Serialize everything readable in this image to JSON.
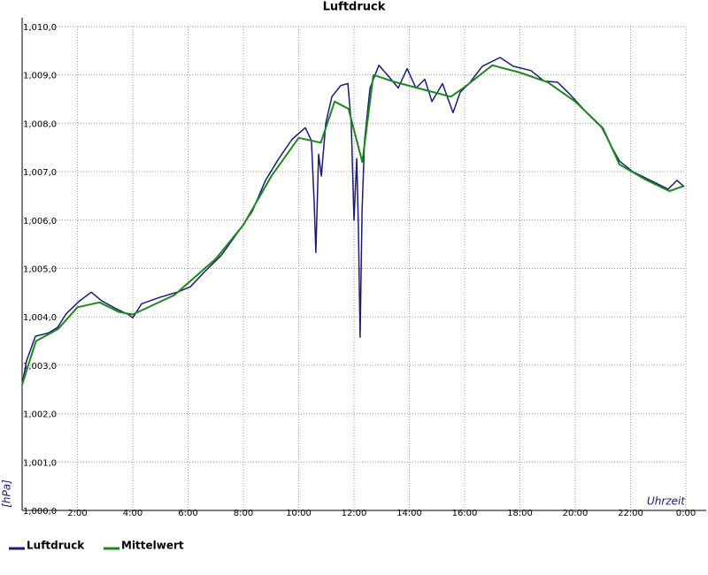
{
  "chart_data": {
    "type": "line",
    "title": "Luftdruck",
    "y_label": "[hPa]",
    "x_label": "Uhrzeit",
    "xlim": [
      0,
      24
    ],
    "xticks": [
      {
        "value": 2,
        "label": "2:00"
      },
      {
        "value": 4,
        "label": "4:00"
      },
      {
        "value": 6,
        "label": "6:00"
      },
      {
        "value": 8,
        "label": "8:00"
      },
      {
        "value": 10,
        "label": "10:00"
      },
      {
        "value": 12,
        "label": "12:00"
      },
      {
        "value": 14,
        "label": "14:00"
      },
      {
        "value": 16,
        "label": "16:00"
      },
      {
        "value": 18,
        "label": "18:00"
      },
      {
        "value": 20,
        "label": "20:00"
      },
      {
        "value": 22,
        "label": "22:00"
      },
      {
        "value": 24,
        "label": "0:00"
      }
    ],
    "ylim": [
      1000,
      1010
    ],
    "yticks": [
      {
        "value": 1000,
        "label": "1,000,0"
      },
      {
        "value": 1001,
        "label": "1,001,0"
      },
      {
        "value": 1002,
        "label": "1,002,0"
      },
      {
        "value": 1003,
        "label": "1,003,0"
      },
      {
        "value": 1004,
        "label": "1,004,0"
      },
      {
        "value": 1005,
        "label": "1,005,0"
      },
      {
        "value": 1006,
        "label": "1,006,0"
      },
      {
        "value": 1007,
        "label": "1,007,0"
      },
      {
        "value": 1008,
        "label": "1,008,0"
      },
      {
        "value": 1009,
        "label": "1,009,0"
      },
      {
        "value": 1010,
        "label": "1,010,0"
      }
    ],
    "grid": true,
    "series": [
      {
        "name": "Luftdruck",
        "color": "#1a1a80",
        "x": [
          0,
          0.16,
          0.48,
          0.96,
          1.28,
          1.6,
          2.08,
          2.5,
          2.88,
          3.36,
          3.84,
          4.0,
          4.32,
          4.96,
          5.6,
          6.08,
          6.56,
          7.2,
          7.84,
          8.32,
          8.8,
          9.28,
          9.76,
          10.24,
          10.46,
          10.56,
          10.62,
          10.72,
          10.82,
          10.98,
          11.2,
          11.52,
          11.78,
          11.9,
          12.0,
          12.1,
          12.16,
          12.22,
          12.29,
          12.38,
          12.58,
          12.9,
          13.28,
          13.6,
          13.92,
          14.24,
          14.56,
          14.82,
          15.2,
          15.58,
          15.84,
          16.16,
          16.64,
          17.28,
          17.76,
          18.4,
          18.88,
          19.36,
          19.84,
          20.48,
          20.96,
          21.28,
          21.6,
          22.08,
          22.72,
          23.36,
          23.68,
          23.94
        ],
        "values": [
          1002.6,
          1003.09,
          1003.6,
          1003.67,
          1003.78,
          1004.07,
          1004.33,
          1004.51,
          1004.33,
          1004.18,
          1004.05,
          1003.98,
          1004.27,
          1004.4,
          1004.51,
          1004.62,
          1004.91,
          1005.27,
          1005.78,
          1006.18,
          1006.82,
          1007.27,
          1007.67,
          1007.91,
          1007.64,
          1006.36,
          1005.33,
          1007.36,
          1006.91,
          1008.0,
          1008.55,
          1008.78,
          1008.82,
          1008.0,
          1006.0,
          1007.27,
          1005.82,
          1003.58,
          1006.18,
          1007.64,
          1008.73,
          1009.2,
          1008.95,
          1008.73,
          1009.13,
          1008.73,
          1008.91,
          1008.45,
          1008.82,
          1008.22,
          1008.64,
          1008.82,
          1009.18,
          1009.36,
          1009.18,
          1009.09,
          1008.87,
          1008.85,
          1008.58,
          1008.18,
          1007.91,
          1007.55,
          1007.22,
          1007.0,
          1006.82,
          1006.64,
          1006.82,
          1006.69
        ]
      },
      {
        "name": "Mittelwert",
        "color": "#1a8a1a",
        "x": [
          0,
          0.5,
          1.3,
          2.0,
          2.8,
          3.5,
          4.0,
          5.5,
          7.0,
          8.0,
          9.0,
          10.0,
          10.8,
          11.3,
          11.8,
          12.3,
          12.7,
          13.5,
          14.5,
          15.5,
          16.0,
          17.0,
          18.0,
          19.0,
          20.0,
          21.0,
          21.6,
          22.5,
          23.4,
          23.9
        ],
        "values": [
          1002.6,
          1003.5,
          1003.75,
          1004.2,
          1004.3,
          1004.1,
          1004.05,
          1004.45,
          1005.2,
          1005.9,
          1006.9,
          1007.7,
          1007.6,
          1008.45,
          1008.3,
          1007.2,
          1009.0,
          1008.85,
          1008.7,
          1008.55,
          1008.75,
          1009.2,
          1009.05,
          1008.85,
          1008.45,
          1007.9,
          1007.15,
          1006.85,
          1006.6,
          1006.7
        ]
      }
    ]
  }
}
